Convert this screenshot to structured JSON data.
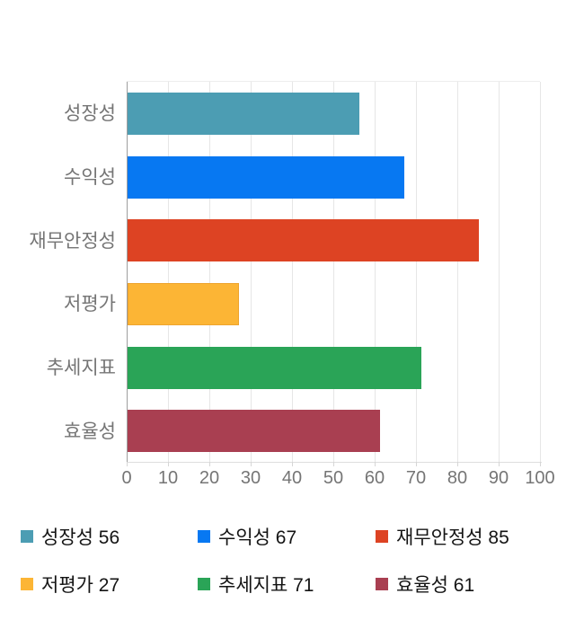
{
  "chart_data": {
    "type": "bar",
    "orientation": "horizontal",
    "title": "",
    "xlabel": "",
    "ylabel": "",
    "categories": [
      "성장성",
      "수익성",
      "재무안정성",
      "저평가",
      "추세지표",
      "효율성"
    ],
    "values": [
      56,
      67,
      85,
      27,
      71,
      61
    ],
    "colors": [
      "#4c9db3",
      "#0778f2",
      "#dd4323",
      "#fcb535",
      "#2aa457",
      "#a93f51"
    ],
    "bar_border_colors": [
      "#4c9db3",
      "#0778f2",
      "#dd4323",
      "#eea42f",
      "#2aa457",
      "#a93f51"
    ],
    "xlim": [
      0,
      100
    ],
    "x_ticks": [
      0,
      10,
      20,
      30,
      40,
      50,
      60,
      70,
      80,
      90,
      100
    ],
    "grid": true,
    "legend_position": "bottom",
    "legend": [
      {
        "label": "성장성",
        "value": 56,
        "color": "#4c9db3"
      },
      {
        "label": "수익성",
        "value": 67,
        "color": "#0778f2"
      },
      {
        "label": "재무안정성",
        "value": 85,
        "color": "#dd4323"
      },
      {
        "label": "저평가",
        "value": 27,
        "color": "#fcb535"
      },
      {
        "label": "추세지표",
        "value": 71,
        "color": "#2aa457"
      },
      {
        "label": "효율성",
        "value": 61,
        "color": "#a93f51"
      }
    ]
  },
  "style_colors": {
    "gridline": "#e6e6e6",
    "axis_baseline": "#9e9e9e",
    "axis_line": "#dedede",
    "tick_label": "#757575",
    "category_label": "#757575",
    "legend_text": "#141414",
    "background": "#ffffff"
  }
}
